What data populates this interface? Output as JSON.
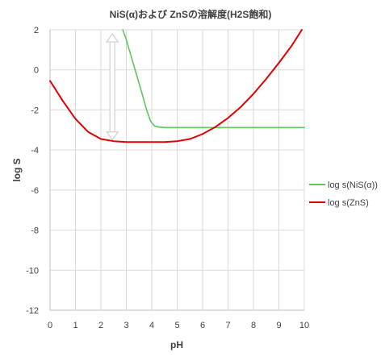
{
  "chart_data": {
    "type": "line",
    "title": "NiS(α)および ZnSの溶解度(H2S飽和)",
    "xlabel": "pH",
    "ylabel": "log S",
    "xlim": [
      0,
      10
    ],
    "ylim": [
      -12,
      2
    ],
    "x_ticks": [
      0,
      1,
      2,
      3,
      4,
      5,
      6,
      7,
      8,
      9,
      10
    ],
    "y_ticks": [
      2,
      0,
      -2,
      -4,
      -6,
      -8,
      -10,
      -12
    ],
    "grid": "horizontal-and-vertical",
    "legend_position": "right",
    "series": [
      {
        "name": "log s(NiS(α))",
        "color": "#5cc85c",
        "x": [
          2.86,
          3.0,
          3.3,
          3.6,
          3.8,
          3.95,
          4.1,
          4.3,
          4.6,
          5.0,
          6.0,
          7.0,
          8.0,
          9.0,
          10.0
        ],
        "y": [
          2.0,
          1.5,
          0.2,
          -1.1,
          -2.0,
          -2.55,
          -2.8,
          -2.86,
          -2.88,
          -2.88,
          -2.88,
          -2.88,
          -2.88,
          -2.88,
          -2.88
        ]
      },
      {
        "name": "log s(ZnS)",
        "color": "#e00000",
        "x": [
          0.0,
          0.5,
          1.0,
          1.5,
          2.0,
          2.5,
          3.0,
          3.5,
          4.0,
          4.5,
          5.0,
          5.5,
          6.0,
          6.5,
          7.0,
          7.5,
          8.0,
          8.5,
          9.0,
          9.5,
          9.9
        ],
        "y": [
          -0.55,
          -1.55,
          -2.45,
          -3.1,
          -3.45,
          -3.56,
          -3.6,
          -3.6,
          -3.6,
          -3.6,
          -3.56,
          -3.45,
          -3.2,
          -2.85,
          -2.4,
          -1.85,
          -1.2,
          -0.45,
          0.35,
          1.2,
          2.0
        ]
      }
    ],
    "annotations": [
      {
        "type": "double-arrow",
        "x": 2.45,
        "y_from": 1.8,
        "y_to": -3.5,
        "color": "#d0d0d0"
      }
    ]
  }
}
